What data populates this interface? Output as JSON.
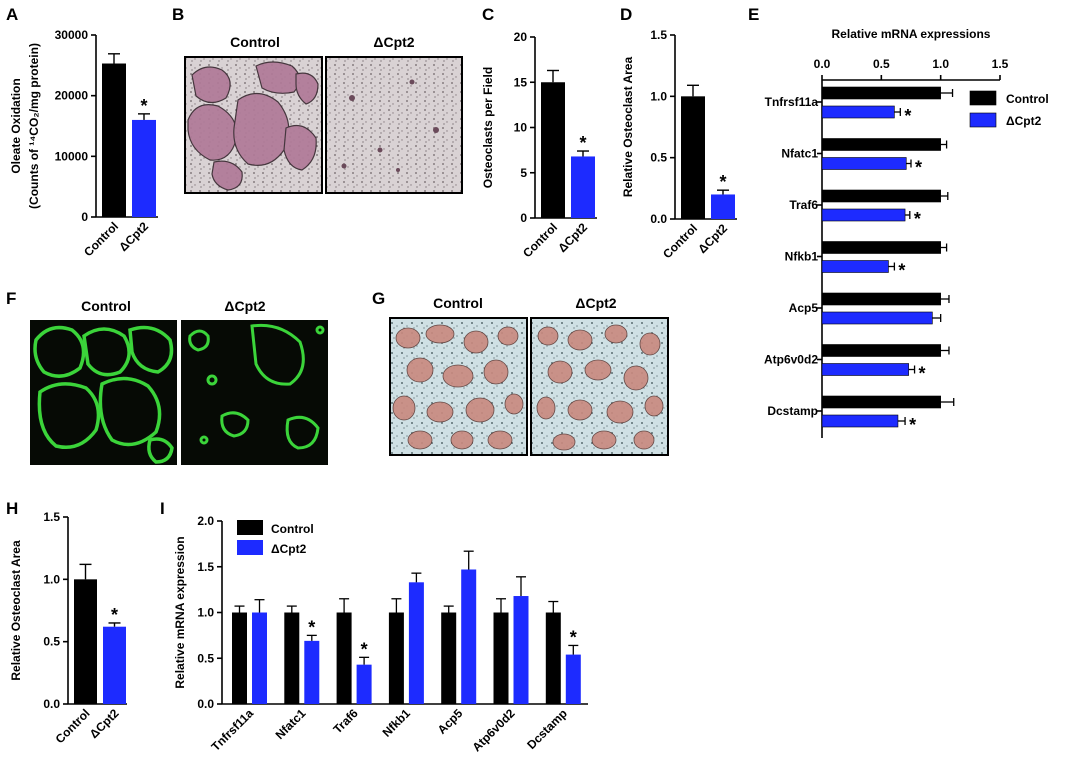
{
  "panels": {
    "a": "A",
    "b": "B",
    "c": "C",
    "d": "D",
    "e": "E",
    "f": "F",
    "g": "G",
    "h": "H",
    "i": "I"
  },
  "images": {
    "b": {
      "left_label": "Control",
      "right_label": "ΔCpt2"
    },
    "f": {
      "left_label": "Control",
      "right_label": "ΔCpt2"
    },
    "g": {
      "left_label": "Control",
      "right_label": "ΔCpt2"
    }
  },
  "colors": {
    "control": "#000000",
    "cpt2": "#1d2bff"
  },
  "chart_data": [
    {
      "id": "A",
      "type": "bar",
      "categories": [
        "Control",
        "ΔCpt2"
      ],
      "values": [
        25300,
        16000
      ],
      "errors": [
        1600,
        1000
      ],
      "significant": [
        false,
        true
      ],
      "ylabel_line1": "Oleate Oxidation",
      "ylabel_line2": "(Counts of ¹⁴CO₂/mg protein)",
      "ylim": [
        0,
        30000
      ],
      "yticks": [
        "0",
        "10000",
        "20000",
        "30000"
      ]
    },
    {
      "id": "C",
      "type": "bar",
      "categories": [
        "Control",
        "ΔCpt2"
      ],
      "values": [
        15.0,
        6.8
      ],
      "errors": [
        1.3,
        0.6
      ],
      "significant": [
        false,
        true
      ],
      "ylabel": "Osteoclasts per Field",
      "ylim": [
        0,
        20
      ],
      "yticks": [
        "0",
        "5",
        "10",
        "15",
        "20"
      ]
    },
    {
      "id": "D",
      "type": "bar",
      "categories": [
        "Control",
        "ΔCpt2"
      ],
      "values": [
        1.0,
        0.2
      ],
      "errors": [
        0.09,
        0.035
      ],
      "significant": [
        false,
        true
      ],
      "ylabel": "Relative Osteoclast Area",
      "ylim": [
        0,
        1.5
      ],
      "yticks": [
        "0.0",
        "0.5",
        "1.0",
        "1.5"
      ]
    },
    {
      "id": "E",
      "type": "bar",
      "orientation": "horizontal",
      "title": "Relative mRNA expressions",
      "categories": [
        "Tnfrsf11a",
        "Nfatc1",
        "Traf6",
        "Nfkb1",
        "Acp5",
        "Atp6v0d2",
        "Dcstamp"
      ],
      "series": [
        {
          "name": "Control",
          "values": [
            1.0,
            1.0,
            1.0,
            1.0,
            1.0,
            1.0,
            1.0
          ],
          "errors": [
            0.1,
            0.05,
            0.06,
            0.05,
            0.07,
            0.07,
            0.11
          ]
        },
        {
          "name": "ΔCpt2",
          "values": [
            0.61,
            0.71,
            0.7,
            0.56,
            0.93,
            0.73,
            0.64
          ],
          "errors": [
            0.05,
            0.04,
            0.04,
            0.05,
            0.07,
            0.05,
            0.06
          ]
        }
      ],
      "significant": [
        true,
        true,
        true,
        true,
        false,
        true,
        true
      ],
      "xlim": [
        0,
        1.5
      ],
      "xticks": [
        "0.0",
        "0.5",
        "1.0",
        "1.5"
      ],
      "legend": "top-right"
    },
    {
      "id": "H",
      "type": "bar",
      "categories": [
        "Control",
        "ΔCpt2"
      ],
      "values": [
        1.0,
        0.62
      ],
      "errors": [
        0.12,
        0.03
      ],
      "significant": [
        false,
        true
      ],
      "ylabel": "Relative Osteoclast Area",
      "ylim": [
        0,
        1.5
      ],
      "yticks": [
        "0.0",
        "0.5",
        "1.0",
        "1.5"
      ]
    },
    {
      "id": "I",
      "type": "bar",
      "categories": [
        "Tnfrsf11a",
        "Nfatc1",
        "Traf6",
        "Nfkb1",
        "Acp5",
        "Atp6v0d2",
        "Dcstamp"
      ],
      "series": [
        {
          "name": "Control",
          "values": [
            1.0,
            1.0,
            1.0,
            1.0,
            1.0,
            1.0,
            1.0
          ],
          "errors": [
            0.07,
            0.07,
            0.15,
            0.15,
            0.07,
            0.15,
            0.12
          ]
        },
        {
          "name": "ΔCpt2",
          "values": [
            1.0,
            0.69,
            0.43,
            1.33,
            1.47,
            1.18,
            0.54
          ],
          "errors": [
            0.14,
            0.06,
            0.08,
            0.1,
            0.2,
            0.21,
            0.1
          ]
        }
      ],
      "significant": [
        false,
        true,
        true,
        false,
        false,
        false,
        true
      ],
      "ylabel": "Relative mRNA expression",
      "ylim": [
        0,
        2.0
      ],
      "yticks": [
        "0.0",
        "0.5",
        "1.0",
        "1.5",
        "2.0"
      ],
      "legend": "top-left"
    }
  ]
}
